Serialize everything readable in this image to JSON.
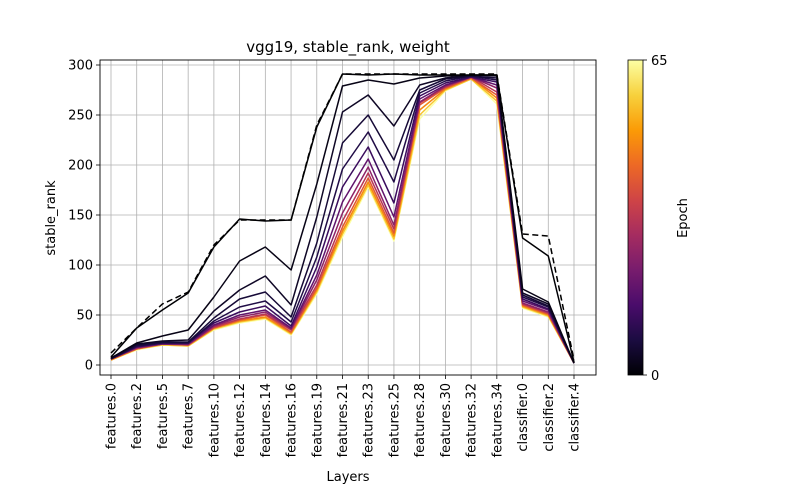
{
  "chart_data": {
    "type": "line",
    "title": "vgg19, stable_rank, weight",
    "xlabel": "Layers",
    "ylabel": "stable_rank",
    "categories": [
      "features.0",
      "features.2",
      "features.5",
      "features.7",
      "features.10",
      "features.12",
      "features.14",
      "features.16",
      "features.19",
      "features.21",
      "features.23",
      "features.25",
      "features.28",
      "features.30",
      "features.32",
      "features.34",
      "classifier.0",
      "classifier.2",
      "classifier.4"
    ],
    "yticks": [
      0,
      50,
      100,
      150,
      200,
      250,
      300
    ],
    "ylim": [
      -10,
      305
    ],
    "grid": true,
    "colorbar": {
      "label": "Epoch",
      "min": 0,
      "max": 65,
      "ticks": [
        "0",
        "65"
      ],
      "colormap": "inferno",
      "stops": [
        "#000004",
        "#1b0c41",
        "#4a0c6b",
        "#781c6d",
        "#a52c60",
        "#cf4446",
        "#ed6925",
        "#fb9b06",
        "#f7d13d",
        "#fcffa4"
      ]
    },
    "reference_series": {
      "style": "dashed",
      "color": "#000000",
      "values": [
        12,
        37,
        61,
        73,
        120,
        145,
        145,
        145,
        240,
        291,
        291,
        291,
        291,
        291,
        291,
        291,
        131,
        129,
        5
      ]
    },
    "series": [
      {
        "epoch": 0,
        "values": [
          8,
          37,
          55,
          72,
          118,
          146,
          144,
          145,
          238,
          291,
          290,
          291,
          290,
          290,
          290,
          290,
          127,
          109,
          3
        ]
      },
      {
        "epoch": 2,
        "values": [
          7,
          22,
          29,
          35,
          68,
          104,
          118,
          95,
          181,
          279,
          285,
          281,
          287,
          289,
          290,
          290,
          76,
          63,
          2
        ]
      },
      {
        "epoch": 4,
        "values": [
          7,
          21,
          24,
          25,
          54,
          75,
          89,
          60,
          148,
          253,
          270,
          239,
          280,
          287,
          290,
          289,
          72,
          61,
          2
        ]
      },
      {
        "epoch": 6,
        "values": [
          6,
          20,
          23,
          23,
          47,
          66,
          73,
          48,
          122,
          222,
          250,
          205,
          275,
          286,
          289,
          287,
          70,
          59,
          2
        ]
      },
      {
        "epoch": 8,
        "values": [
          6,
          19,
          22,
          22,
          44,
          58,
          64,
          43,
          108,
          196,
          233,
          183,
          272,
          284,
          289,
          285,
          68,
          58,
          2
        ]
      },
      {
        "epoch": 12,
        "values": [
          6,
          18,
          22,
          22,
          42,
          53,
          59,
          39,
          98,
          178,
          218,
          162,
          269,
          282,
          288,
          283,
          66,
          56,
          2
        ]
      },
      {
        "epoch": 18,
        "values": [
          6,
          18,
          21,
          21,
          40,
          50,
          55,
          37,
          90,
          163,
          206,
          148,
          266,
          280,
          288,
          280,
          64,
          55,
          2
        ]
      },
      {
        "epoch": 25,
        "values": [
          6,
          17,
          21,
          21,
          39,
          48,
          53,
          36,
          85,
          152,
          198,
          140,
          263,
          279,
          288,
          277,
          62,
          53,
          2
        ]
      },
      {
        "epoch": 32,
        "values": [
          6,
          17,
          21,
          20,
          38,
          46,
          51,
          35,
          80,
          144,
          192,
          136,
          262,
          278,
          288,
          273,
          61,
          52,
          2
        ]
      },
      {
        "epoch": 40,
        "values": [
          6,
          16,
          21,
          20,
          37,
          45,
          50,
          33,
          77,
          138,
          187,
          132,
          260,
          277,
          287,
          270,
          60,
          51,
          2
        ]
      },
      {
        "epoch": 48,
        "values": [
          5,
          16,
          21,
          20,
          37,
          44,
          48,
          32,
          75,
          134,
          183,
          129,
          255,
          276,
          287,
          267,
          59,
          50,
          2
        ]
      },
      {
        "epoch": 56,
        "values": [
          5,
          16,
          20,
          19,
          36,
          43,
          47,
          31,
          73,
          131,
          180,
          126,
          250,
          275,
          286,
          264,
          58,
          49,
          2
        ]
      },
      {
        "epoch": 65,
        "values": [
          5,
          15,
          20,
          19,
          35,
          42,
          46,
          30,
          71,
          128,
          178,
          124,
          246,
          274,
          286,
          261,
          57,
          48,
          2
        ]
      }
    ]
  }
}
